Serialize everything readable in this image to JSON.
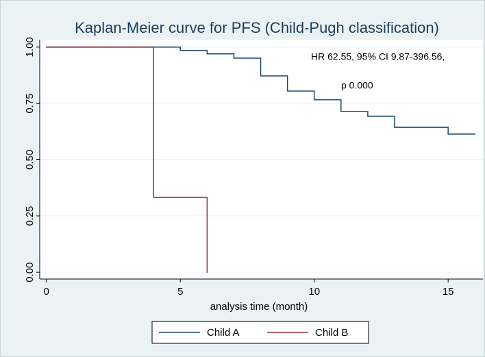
{
  "chart_data": {
    "type": "step",
    "title": "Kaplan-Meier curve for PFS (Child-Pugh classification)",
    "x_label": "analysis time (month)",
    "annotations": [
      "HR 62.55, 95% CI 9.87-396.56,",
      "p 0.000"
    ],
    "xlim": [
      -0.25,
      16.3
    ],
    "xticks": [
      0,
      5,
      10,
      15
    ],
    "ylim": [
      -0.03,
      1.033
    ],
    "yticks": [
      {
        "value": 0,
        "label": "0.00"
      },
      {
        "value": 0.25,
        "label": "0.25"
      },
      {
        "value": 0.5,
        "label": "0.50"
      },
      {
        "value": 0.75,
        "label": "0.75"
      },
      {
        "value": 1,
        "label": "1.00"
      }
    ],
    "grid": true,
    "legend": "bottom",
    "series": [
      {
        "name": "Child A",
        "color": "#1a476f",
        "x": [
          0,
          5,
          6,
          7,
          8,
          9,
          10,
          11,
          12,
          13,
          15,
          16
        ],
        "values": [
          1,
          0.985,
          0.97,
          0.951,
          0.872,
          0.805,
          0.766,
          0.714,
          0.693,
          0.644,
          0.614,
          0.614
        ]
      },
      {
        "name": "Child B",
        "color": "#90353b",
        "x": [
          0,
          4,
          6
        ],
        "values": [
          1,
          0.333,
          0
        ]
      }
    ]
  }
}
